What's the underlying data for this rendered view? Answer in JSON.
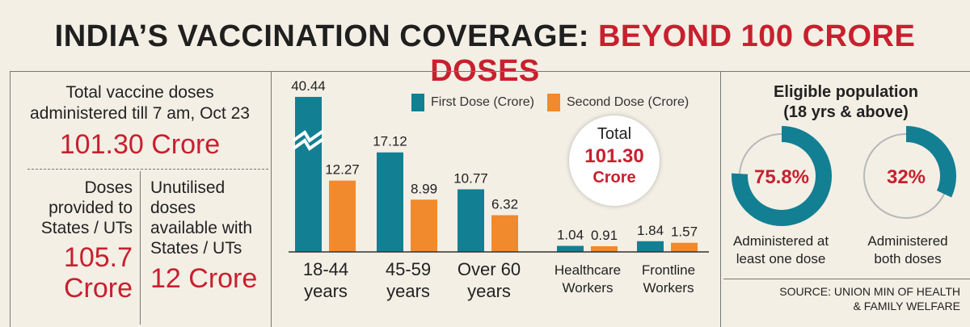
{
  "title": {
    "part1": "INDIA’S VACCINATION COVERAGE:",
    "part2": "BEYOND 100 CRORE DOSES"
  },
  "summary": {
    "total_label_line1": "Total vaccine doses",
    "total_label_line2": "administered till 7 am, Oct 23",
    "total_value": "101.30 Crore",
    "provided_label": [
      "Doses",
      "provided to",
      "States / UTs"
    ],
    "provided_value": [
      "105.7",
      "Crore"
    ],
    "unutilised_label": [
      "Unutilised",
      "doses",
      "available with",
      "States / UTs"
    ],
    "unutilised_value": "12 Crore"
  },
  "total_badge": {
    "label": "Total",
    "value": "101.30",
    "unit": "Crore"
  },
  "chart_data": {
    "type": "bar",
    "categories": [
      "18-44 years",
      "45-59 years",
      "Over 60 years",
      "Healthcare Workers",
      "Frontline Workers"
    ],
    "category_lines": [
      [
        "18-44",
        "years"
      ],
      [
        "45-59",
        "years"
      ],
      [
        "Over 60",
        "years"
      ],
      [
        "Healthcare",
        "Workers"
      ],
      [
        "Frontline",
        "Workers"
      ]
    ],
    "series": [
      {
        "name": "First Dose (Crore)",
        "values": [
          40.44,
          17.12,
          10.77,
          1.04,
          1.84
        ],
        "color": "#137f93"
      },
      {
        "name": "Second Dose (Crore)",
        "values": [
          12.27,
          8.99,
          6.32,
          0.91,
          1.57
        ],
        "color": "#f08a2c"
      }
    ],
    "value_labels": {
      "first": [
        "40.44",
        "17.12",
        "10.77",
        "1.04",
        "1.84"
      ],
      "second": [
        "12.27",
        "8.99",
        "6.32",
        "0.91",
        "1.57"
      ]
    },
    "axis_break": true,
    "ylim": [
      0,
      40.44
    ],
    "legend": "top"
  },
  "eligible": {
    "title_line1": "Eligible population",
    "title_line2": "(18 yrs & above)",
    "donuts": [
      {
        "value": 75.8,
        "label": "75.8%",
        "caption": [
          "Administered at",
          "least one dose"
        ]
      },
      {
        "value": 32,
        "label": "32%",
        "caption": [
          "Administered",
          "both doses"
        ]
      }
    ],
    "colors": {
      "filled": "#137f93",
      "empty": "#b8b8b8",
      "text": "#c8202e"
    }
  },
  "source": [
    "SOURCE: UNION MIN OF HEALTH",
    "& FAMILY WELFARE"
  ],
  "colors": {
    "red": "#c8202e",
    "teal": "#137f93",
    "orange": "#f08a2c",
    "background": "#f3efe5"
  }
}
